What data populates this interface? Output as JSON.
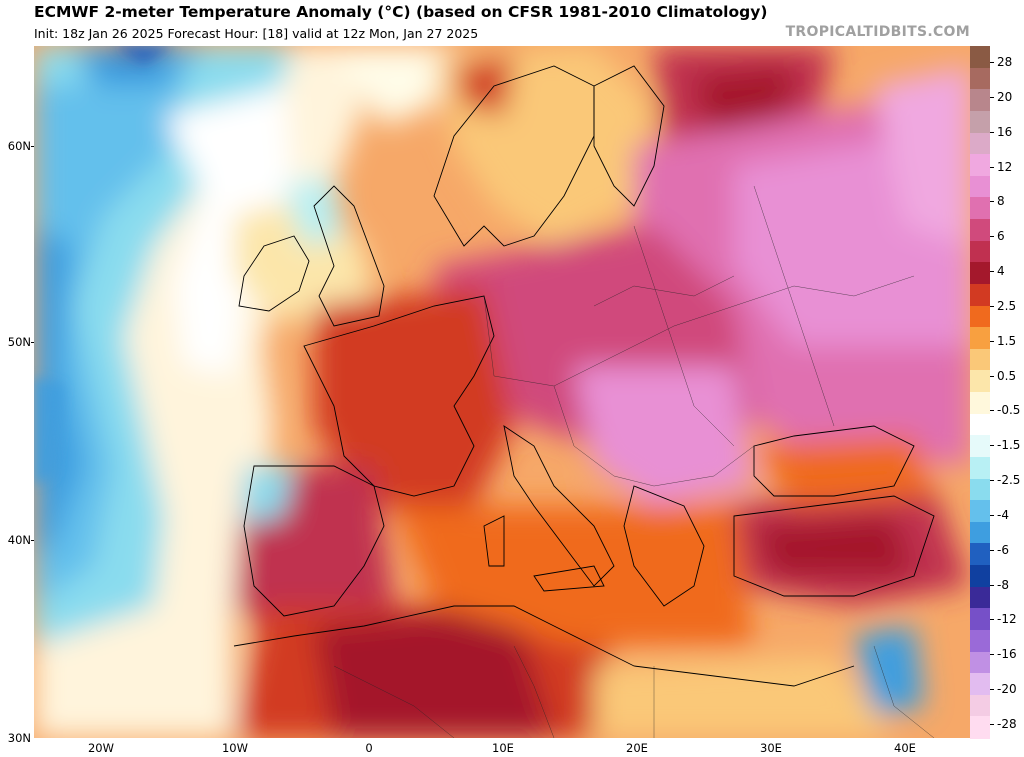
{
  "header": {
    "title": "ECMWF 2-meter Temperature Anomaly (°C) (based on CFSR 1981-2010 Climatology)",
    "subtitle": "Init: 18z Jan 26 2025   Forecast Hour: [18]   valid at 12z Mon, Jan 27 2025",
    "credit": "TROPICALTIDBITS.COM"
  },
  "axes": {
    "lat_labels": [
      "60N",
      "50N",
      "40N",
      "30N"
    ],
    "lon_labels": [
      "20W",
      "10W",
      "0",
      "10E",
      "20E",
      "30E",
      "40E"
    ]
  },
  "colorbar": {
    "labels": [
      "28",
      "20",
      "16",
      "12",
      "8",
      "6",
      "4",
      "2.5",
      "1.5",
      "0.5",
      "-0.5",
      "-1.5",
      "-2.5",
      "-4",
      "-6",
      "-8",
      "-12",
      "-16",
      "-20",
      "-28"
    ],
    "colors": [
      "#8a5a44",
      "#a76a60",
      "#b8868c",
      "#c5a0aa",
      "#dcaac8",
      "#f0a8e0",
      "#e890d4",
      "#e070b0",
      "#d04a7c",
      "#c03050",
      "#a4182c",
      "#d23a22",
      "#f06a1e",
      "#f8a040",
      "#fac878",
      "#fce6aa",
      "#fff8dc",
      "#ffffff",
      "#e6fafa",
      "#b8f0f4",
      "#8adcee",
      "#64c0ec",
      "#3e9ee0",
      "#2060c0",
      "#1040a0",
      "#3a2a98",
      "#7650c8",
      "#9a6ad8",
      "#c090e4",
      "#e2bcf0",
      "#f4cce4",
      "#ffdcf0"
    ]
  }
}
